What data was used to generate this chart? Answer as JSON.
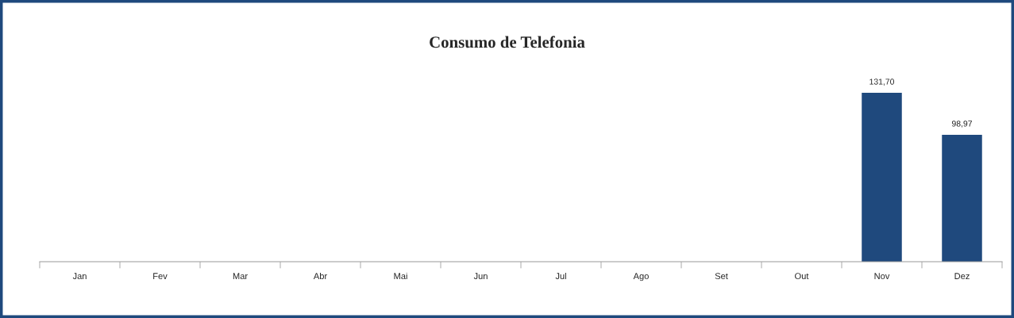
{
  "chart_data": {
    "type": "bar",
    "title": "Consumo de Telefonia",
    "categories": [
      "Jan",
      "Fev",
      "Mar",
      "Abr",
      "Mai",
      "Jun",
      "Jul",
      "Ago",
      "Set",
      "Out",
      "Nov",
      "Dez"
    ],
    "values": [
      null,
      null,
      null,
      null,
      null,
      null,
      null,
      null,
      null,
      null,
      131.7,
      98.97
    ],
    "value_labels": [
      null,
      null,
      null,
      null,
      null,
      null,
      null,
      null,
      null,
      null,
      "131,70",
      "98,97"
    ],
    "color": "#1f497d"
  }
}
